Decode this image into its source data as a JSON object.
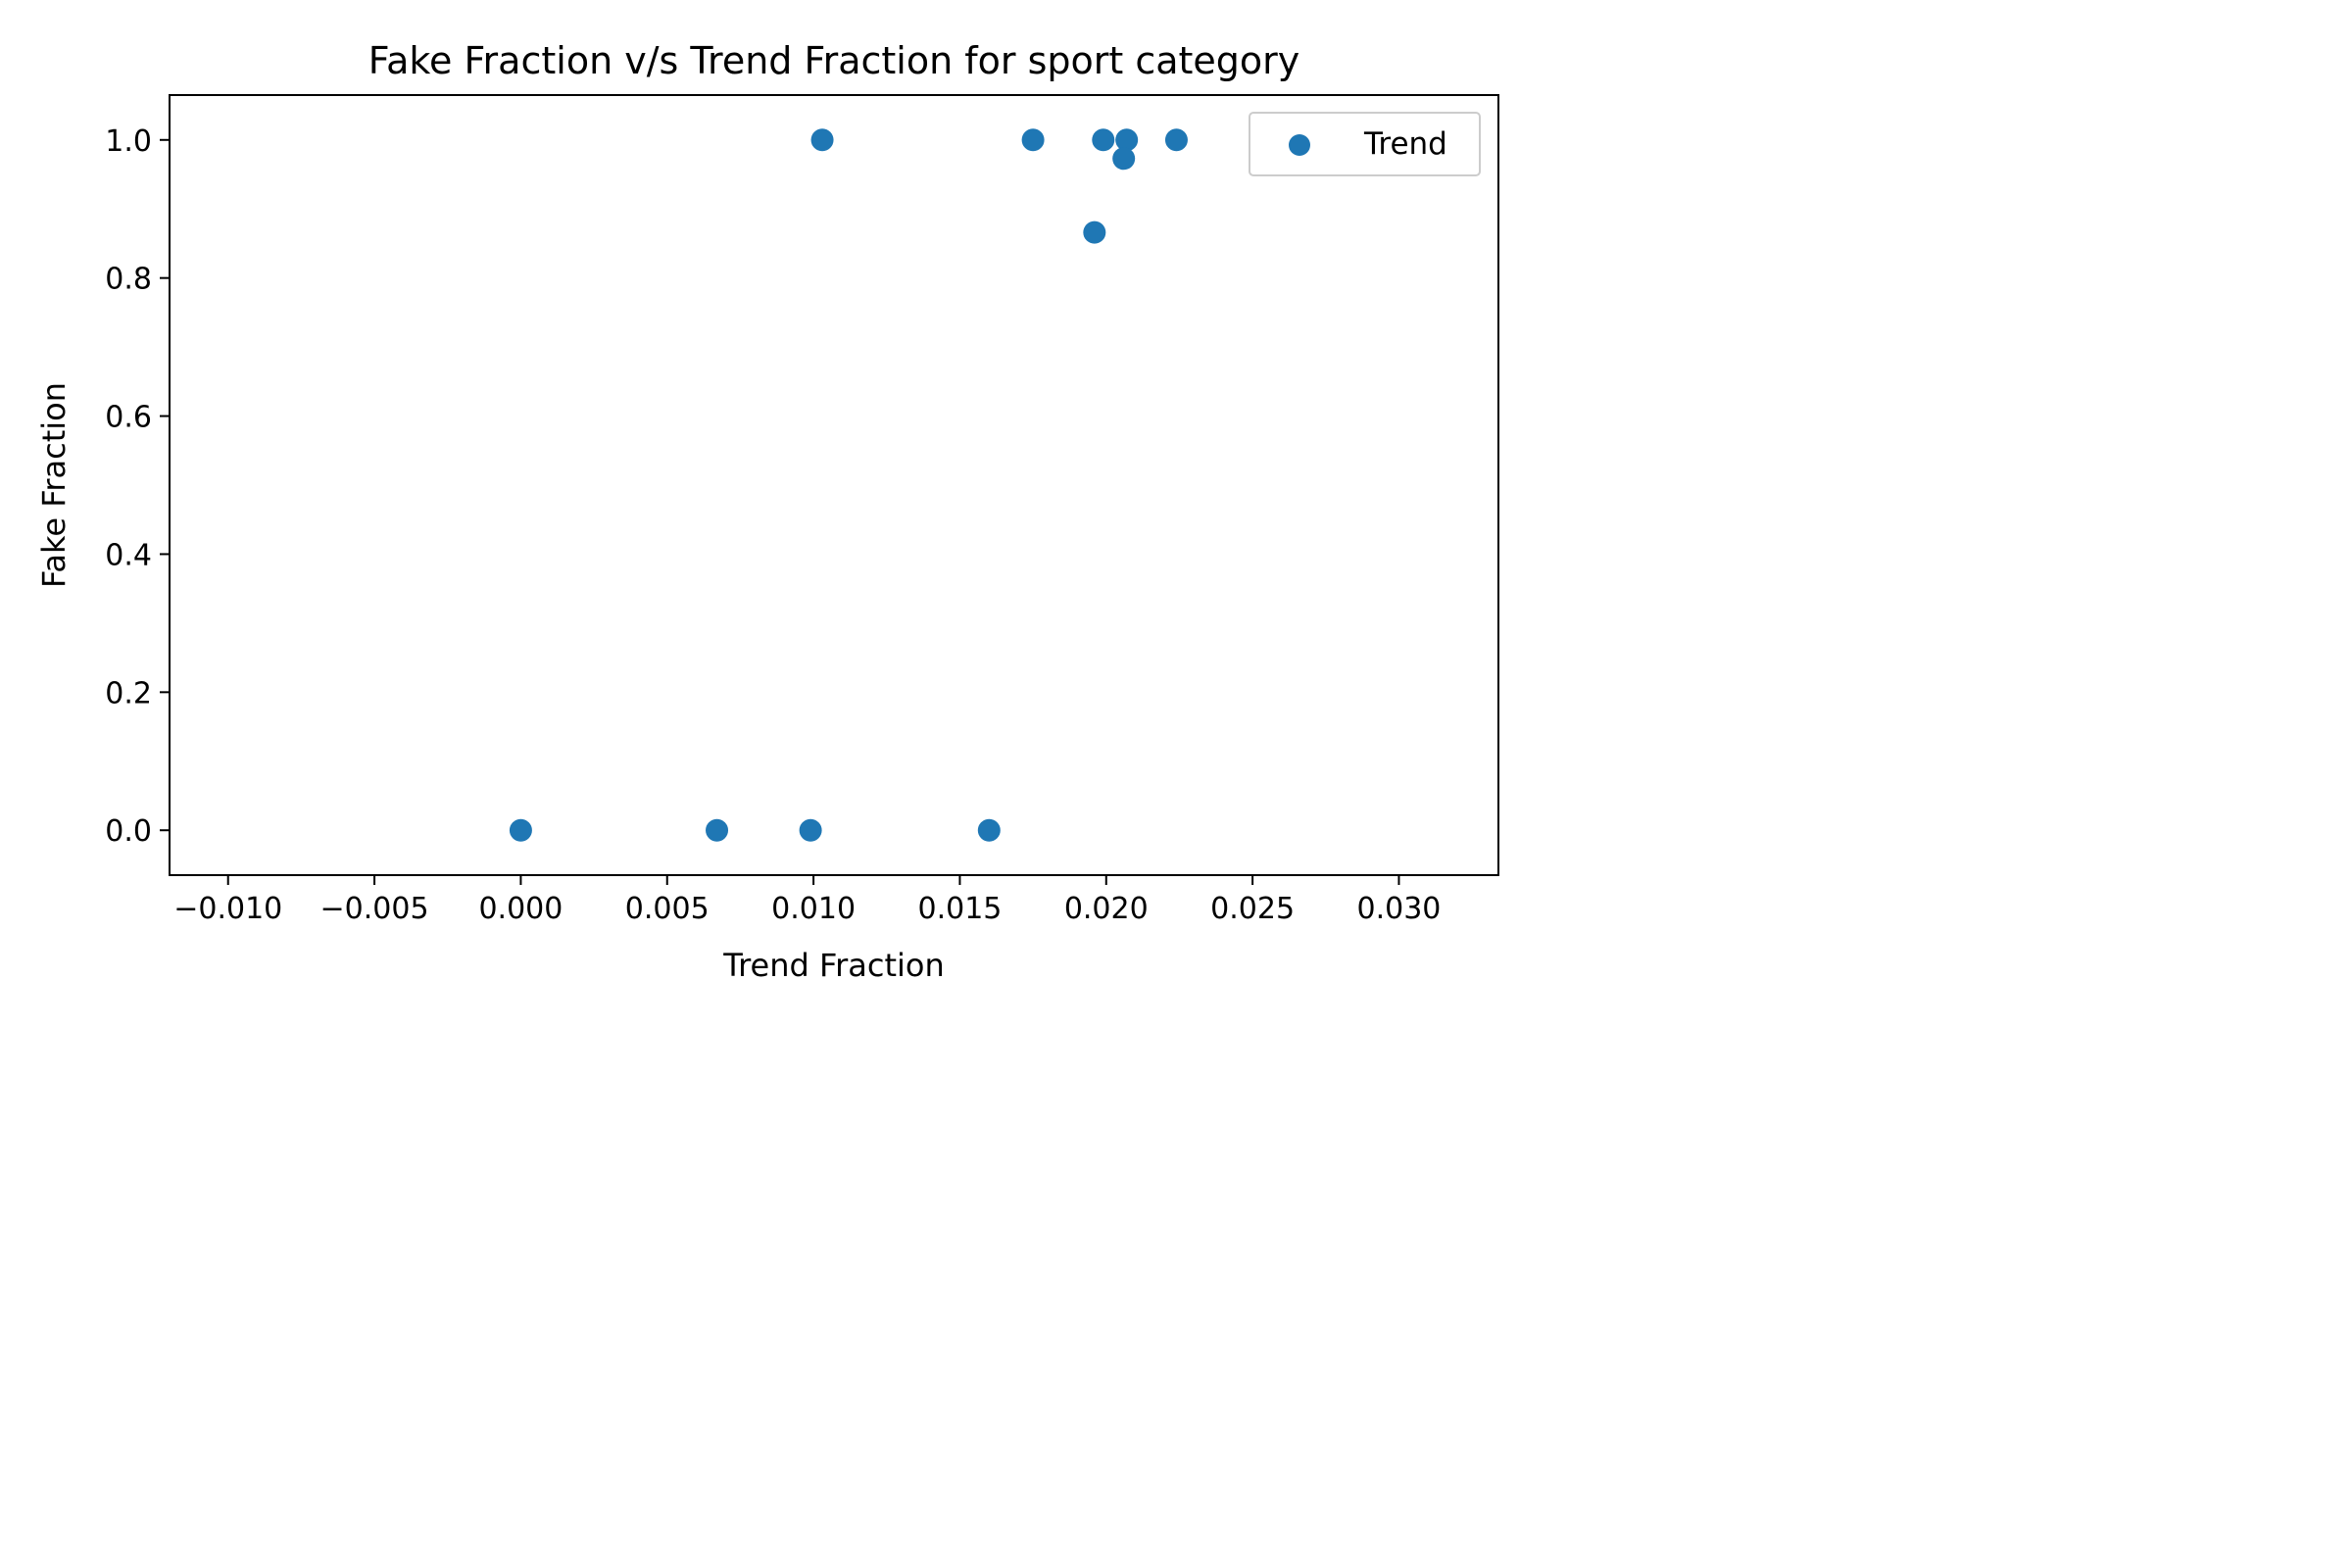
{
  "chart_data": {
    "type": "scatter",
    "title": "Fake Fraction v/s Trend Fraction for sport category",
    "xlabel": "Trend Fraction",
    "ylabel": "Fake Fraction",
    "xlim": [
      -0.012,
      0.0334
    ],
    "ylim": [
      -0.065,
      1.065
    ],
    "x_ticks": [
      -0.01,
      -0.005,
      0.0,
      0.005,
      0.01,
      0.015,
      0.02,
      0.025,
      0.03
    ],
    "x_tick_labels": [
      "−0.010",
      "−0.005",
      "0.000",
      "0.005",
      "0.010",
      "0.015",
      "0.020",
      "0.025",
      "0.030"
    ],
    "y_ticks": [
      0.0,
      0.2,
      0.4,
      0.6,
      0.8,
      1.0
    ],
    "y_tick_labels": [
      "0.0",
      "0.2",
      "0.4",
      "0.6",
      "0.8",
      "1.0"
    ],
    "grid": false,
    "legend_position": "top-right",
    "series": [
      {
        "name": "Trend",
        "color": "#1f77b4",
        "points": [
          {
            "x": 0.0103,
            "y": 1.0
          },
          {
            "x": 0.0175,
            "y": 1.0
          },
          {
            "x": 0.0199,
            "y": 1.0
          },
          {
            "x": 0.0207,
            "y": 1.0
          },
          {
            "x": 0.0206,
            "y": 0.973
          },
          {
            "x": 0.0224,
            "y": 1.0
          },
          {
            "x": 0.0196,
            "y": 0.866
          },
          {
            "x": 0.0,
            "y": 0.0
          },
          {
            "x": 0.0067,
            "y": 0.0
          },
          {
            "x": 0.0099,
            "y": 0.0
          },
          {
            "x": 0.016,
            "y": 0.0
          }
        ]
      }
    ]
  }
}
